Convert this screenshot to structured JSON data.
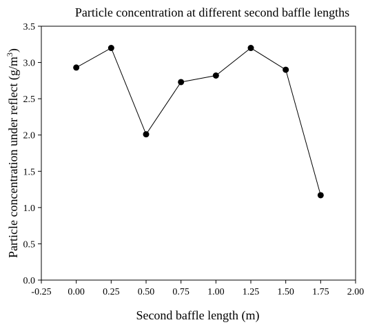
{
  "chart_data": {
    "type": "line",
    "title": "Particle concentration at different second baffle lengths",
    "xlabel": "Second baffle length (m)",
    "ylabel_main": "Particle concentration under reflect (g/m",
    "ylabel_sup": "3",
    "ylabel_close": ")",
    "xlim": [
      -0.25,
      2.0
    ],
    "ylim": [
      0.0,
      3.5
    ],
    "xticks": [
      "-0.25",
      "0.00",
      "0.25",
      "0.50",
      "0.75",
      "1.00",
      "1.25",
      "1.50",
      "1.75",
      "2.00"
    ],
    "yticks": [
      "0.0",
      "0.5",
      "1.0",
      "1.5",
      "2.0",
      "2.5",
      "3.0",
      "3.5"
    ],
    "grid": false,
    "series": [
      {
        "x": [
          0.0,
          0.25,
          0.5,
          0.75,
          1.0,
          1.25,
          1.5,
          1.75
        ],
        "y": [
          2.93,
          3.2,
          2.01,
          2.73,
          2.82,
          3.2,
          2.9,
          1.17
        ]
      }
    ],
    "colors": {
      "line": "#000000",
      "marker": "#000000"
    }
  }
}
